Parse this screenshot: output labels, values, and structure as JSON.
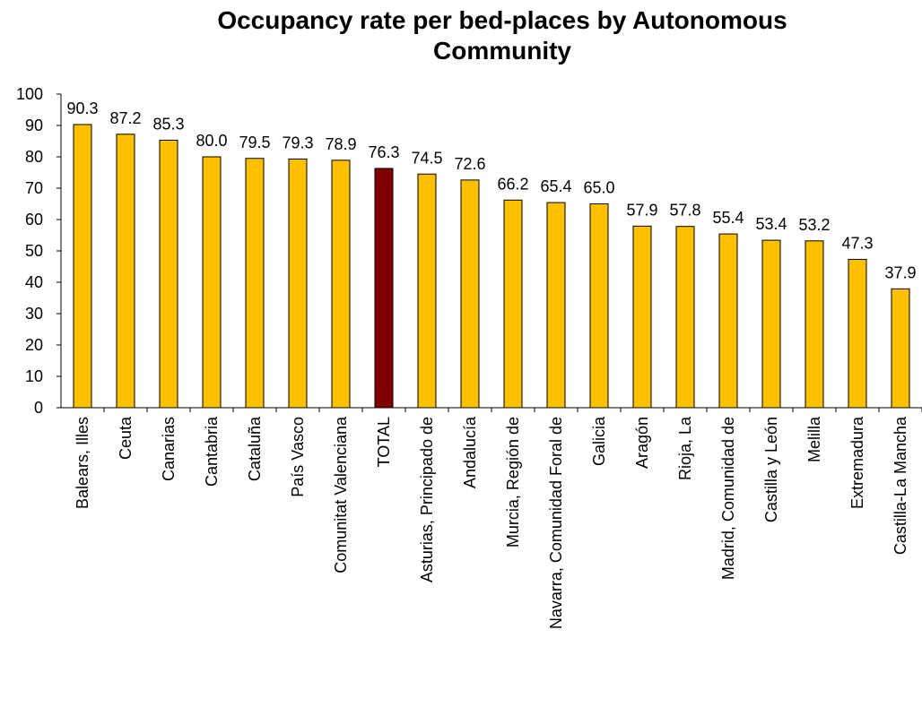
{
  "chart_data": {
    "type": "bar",
    "title": "Occupancy rate per bed-places by Autonomous Community",
    "categories": [
      "Balears, Illes",
      "Ceuta",
      "Canarias",
      "Cantabria",
      "Cataluña",
      "País Vasco",
      "Comunitat Valenciana",
      "TOTAL",
      "Asturias, Principado de",
      "Andalucía",
      "Murcia, Región de",
      "Navarra, Comunidad Foral de",
      "Galicia",
      "Aragón",
      "Rioja, La",
      "Madrid, Comunidad de",
      "Castilla y León",
      "Melilla",
      "Extremadura",
      "Castilla-La Mancha"
    ],
    "values": [
      90.3,
      87.2,
      85.3,
      80.0,
      79.5,
      79.3,
      78.9,
      76.3,
      74.5,
      72.6,
      66.2,
      65.4,
      65.0,
      57.9,
      57.8,
      55.4,
      53.4,
      53.2,
      47.3,
      37.9
    ],
    "value_labels": [
      "90.3",
      "87.2",
      "85.3",
      "80.0",
      "79.5",
      "79.3",
      "78.9",
      "76.3",
      "74.5",
      "72.6",
      "66.2",
      "65.4",
      "65.0",
      "57.9",
      "57.8",
      "55.4",
      "53.4",
      "53.2",
      "47.3",
      "37.9"
    ],
    "colors": [
      "#FFC000",
      "#FFC000",
      "#FFC000",
      "#FFC000",
      "#FFC000",
      "#FFC000",
      "#FFC000",
      "#800000",
      "#FFC000",
      "#FFC000",
      "#FFC000",
      "#FFC000",
      "#FFC000",
      "#FFC000",
      "#FFC000",
      "#FFC000",
      "#FFC000",
      "#FFC000",
      "#FFC000",
      "#FFC000"
    ],
    "ylim": [
      0,
      100
    ],
    "yticks": [
      0,
      10,
      20,
      30,
      40,
      50,
      60,
      70,
      80,
      90,
      100
    ],
    "grid": false
  }
}
